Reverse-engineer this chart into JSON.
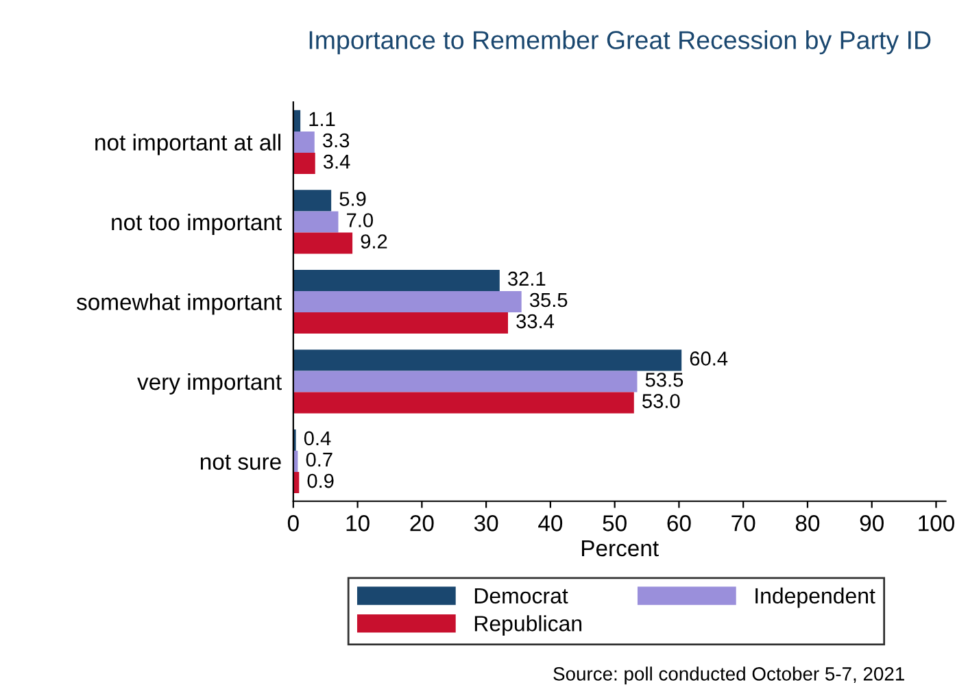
{
  "chart_data": {
    "type": "bar",
    "orientation": "horizontal",
    "title": "Importance to Remember Great Recession by Party ID",
    "xlabel": "Percent",
    "categories": [
      "not important at all",
      "not too important",
      "somewhat important",
      "very important",
      "not sure"
    ],
    "series": [
      {
        "name": "Democrat",
        "color": "#1a476f",
        "values": [
          1.1,
          5.9,
          32.1,
          60.4,
          0.4
        ],
        "value_labels": [
          "1.1",
          "5.9",
          "32.1",
          "60.4",
          "0.4"
        ]
      },
      {
        "name": "Independent",
        "color": "#9a8fdb",
        "values": [
          3.3,
          7.0,
          35.5,
          53.5,
          0.7
        ],
        "value_labels": [
          "3.3",
          "7.0",
          "35.5",
          "53.5",
          "0.7"
        ]
      },
      {
        "name": "Republican",
        "color": "#c8102e",
        "values": [
          3.4,
          9.2,
          33.4,
          53.0,
          0.9
        ],
        "value_labels": [
          "3.4",
          "9.2",
          "33.4",
          "53.0",
          "0.9"
        ]
      }
    ],
    "xlim": [
      0,
      101.5
    ],
    "xticks": [
      0,
      10,
      20,
      30,
      40,
      50,
      60,
      70,
      80,
      90,
      100
    ],
    "grid": false,
    "legend": "bottom",
    "annotations": [
      "Source: poll conducted October 5-7, 2021"
    ]
  }
}
